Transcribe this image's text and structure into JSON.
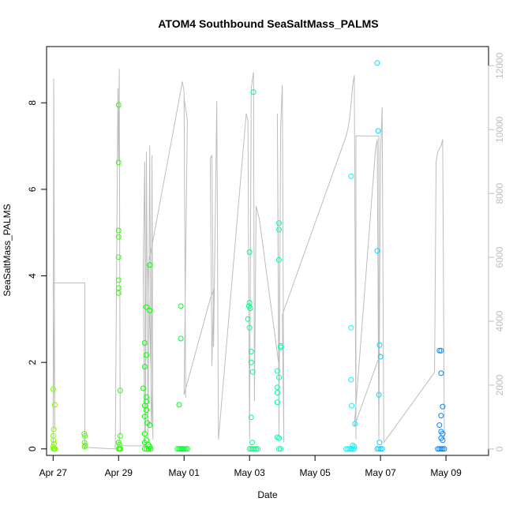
{
  "chart_data": {
    "type": "scatter",
    "title": "ATOM4 Southbound SeaSaltMass_PALMS",
    "xlabel": "Date",
    "ylabel": "SeaSaltMass_PALMS",
    "xlim": [
      -0.2,
      13.3
    ],
    "ylim": [
      -0.15,
      9.3
    ],
    "y2lim": [
      -200,
      12600
    ],
    "x_ticks": [
      {
        "value": 0,
        "label": "Apr 27"
      },
      {
        "value": 2,
        "label": "Apr 29"
      },
      {
        "value": 4,
        "label": "May 01"
      },
      {
        "value": 6,
        "label": "May 03"
      },
      {
        "value": 8,
        "label": "May 05"
      },
      {
        "value": 10,
        "label": "May 07"
      },
      {
        "value": 12,
        "label": "May 09"
      }
    ],
    "y_ticks": [
      0,
      2,
      4,
      6,
      8
    ],
    "y2_ticks": [
      0,
      2000,
      4000,
      6000,
      8000,
      10000,
      12000
    ],
    "grid": false,
    "series": [
      {
        "marker": "open-circle",
        "color_gradient": [
          "#80ff00",
          "#00ff00",
          "#00ff80",
          "#00ffff",
          "#0080ff"
        ],
        "points": [
          [
            0.0,
            1.38
          ],
          [
            0.05,
            1.02
          ],
          [
            0.02,
            0.45
          ],
          [
            0.0,
            0.3
          ],
          [
            0.01,
            0.2
          ],
          [
            0.03,
            0.12
          ],
          [
            0.0,
            0.05
          ],
          [
            0.04,
            0.0
          ],
          [
            0.02,
            0.0
          ],
          [
            0.06,
            0.0
          ],
          [
            0.01,
            0.0
          ],
          [
            0.95,
            0.35
          ],
          [
            0.97,
            0.3
          ],
          [
            0.96,
            0.15
          ],
          [
            0.98,
            0.08
          ],
          [
            0.96,
            0.05
          ],
          [
            2.0,
            7.95
          ],
          [
            2.0,
            6.62
          ],
          [
            2.0,
            5.05
          ],
          [
            2.0,
            4.9
          ],
          [
            2.0,
            4.43
          ],
          [
            2.0,
            3.9
          ],
          [
            2.0,
            3.72
          ],
          [
            2.0,
            3.6
          ],
          [
            2.05,
            1.35
          ],
          [
            2.05,
            0.3
          ],
          [
            2.0,
            0.15
          ],
          [
            2.02,
            0.1
          ],
          [
            2.0,
            0.0
          ],
          [
            2.03,
            0.0
          ],
          [
            2.06,
            0.0
          ],
          [
            2.75,
            1.4
          ],
          [
            2.8,
            1.9
          ],
          [
            2.8,
            2.45
          ],
          [
            2.85,
            2.17
          ],
          [
            2.85,
            3.28
          ],
          [
            2.95,
            3.2
          ],
          [
            2.95,
            4.25
          ],
          [
            2.8,
            1.0
          ],
          [
            2.85,
            1.1
          ],
          [
            2.85,
            1.2
          ],
          [
            2.85,
            0.9
          ],
          [
            2.8,
            0.75
          ],
          [
            2.88,
            0.6
          ],
          [
            2.95,
            0.55
          ],
          [
            2.8,
            0.35
          ],
          [
            2.85,
            0.2
          ],
          [
            2.8,
            0.15
          ],
          [
            2.9,
            0.1
          ],
          [
            2.95,
            0.05
          ],
          [
            2.8,
            0.0
          ],
          [
            2.86,
            0.0
          ],
          [
            2.92,
            0.0
          ],
          [
            2.98,
            0.0
          ],
          [
            3.95,
            0.0
          ],
          [
            4.0,
            0.0
          ],
          [
            4.05,
            0.0
          ],
          [
            4.1,
            0.0
          ],
          [
            3.85,
            1.02
          ],
          [
            3.9,
            2.55
          ],
          [
            3.9,
            3.3
          ],
          [
            3.8,
            0.0
          ],
          [
            3.85,
            0.0
          ],
          [
            3.9,
            0.0
          ],
          [
            3.95,
            0.0
          ],
          [
            4.0,
            0.0
          ],
          [
            5.95,
            3.0
          ],
          [
            5.98,
            3.3
          ],
          [
            6.0,
            3.38
          ],
          [
            6.02,
            3.25
          ],
          [
            6.0,
            2.8
          ],
          [
            6.05,
            2.25
          ],
          [
            6.05,
            2.0
          ],
          [
            6.1,
            1.78
          ],
          [
            6.0,
            4.55
          ],
          [
            6.12,
            8.25
          ],
          [
            6.05,
            0.73
          ],
          [
            6.08,
            0.15
          ],
          [
            6.0,
            0.0
          ],
          [
            6.05,
            0.0
          ],
          [
            6.1,
            0.0
          ],
          [
            6.15,
            0.0
          ],
          [
            6.2,
            0.0
          ],
          [
            6.25,
            0.0
          ],
          [
            6.9,
            5.22
          ],
          [
            6.9,
            5.07
          ],
          [
            6.9,
            4.37
          ],
          [
            6.95,
            2.38
          ],
          [
            6.95,
            2.35
          ],
          [
            6.85,
            1.8
          ],
          [
            6.9,
            1.65
          ],
          [
            6.85,
            1.42
          ],
          [
            6.85,
            1.3
          ],
          [
            6.85,
            1.08
          ],
          [
            6.85,
            0.27
          ],
          [
            6.9,
            0.25
          ],
          [
            6.9,
            0.0
          ],
          [
            6.95,
            0.0
          ],
          [
            8.95,
            0.0
          ],
          [
            9.0,
            0.0
          ],
          [
            9.05,
            0.0
          ],
          [
            9.1,
            0.0
          ],
          [
            9.15,
            0.0
          ],
          [
            9.2,
            0.0
          ],
          [
            9.1,
            6.3
          ],
          [
            9.1,
            2.8
          ],
          [
            9.1,
            1.6
          ],
          [
            9.12,
            1.0
          ],
          [
            9.22,
            0.58
          ],
          [
            9.15,
            0.08
          ],
          [
            9.2,
            0.05
          ],
          [
            9.9,
            8.92
          ],
          [
            9.93,
            7.35
          ],
          [
            9.9,
            4.58
          ],
          [
            9.97,
            2.4
          ],
          [
            10.0,
            2.13
          ],
          [
            9.95,
            1.25
          ],
          [
            9.97,
            0.15
          ],
          [
            9.9,
            0.0
          ],
          [
            9.95,
            0.0
          ],
          [
            10.0,
            0.0
          ],
          [
            10.05,
            0.0
          ],
          [
            11.8,
            2.27
          ],
          [
            11.85,
            2.27
          ],
          [
            11.85,
            1.75
          ],
          [
            11.9,
            0.98
          ],
          [
            11.85,
            0.77
          ],
          [
            11.8,
            0.55
          ],
          [
            11.85,
            0.4
          ],
          [
            11.9,
            0.35
          ],
          [
            11.85,
            0.25
          ],
          [
            11.9,
            0.2
          ],
          [
            11.75,
            0.0
          ],
          [
            11.8,
            0.0
          ],
          [
            11.85,
            0.0
          ],
          [
            11.9,
            0.0
          ],
          [
            11.95,
            0.0
          ]
        ]
      },
      {
        "axis": "right",
        "style": "line",
        "color": "#bdbdbd",
        "points": [
          [
            0.0,
            0
          ],
          [
            0.02,
            11600
          ],
          [
            0.05,
            600
          ],
          [
            0.0,
            5200
          ],
          [
            0.97,
            5200
          ],
          [
            0.97,
            0
          ],
          [
            0.97,
            200
          ],
          [
            1.0,
            50
          ],
          [
            1.9,
            0
          ],
          [
            1.98,
            11300
          ],
          [
            2.0,
            9000
          ],
          [
            2.02,
            11900
          ],
          [
            2.05,
            500
          ],
          [
            2.0,
            100
          ],
          [
            2.8,
            100
          ],
          [
            2.75,
            5600
          ],
          [
            2.8,
            9000
          ],
          [
            2.82,
            500
          ],
          [
            2.85,
            9300
          ],
          [
            2.9,
            300
          ],
          [
            2.95,
            9500
          ],
          [
            3.0,
            800
          ],
          [
            3.02,
            9200
          ],
          [
            3.05,
            300
          ],
          [
            2.9,
            5700
          ],
          [
            3.95,
            11500
          ],
          [
            4.0,
            11200
          ],
          [
            4.05,
            1600
          ],
          [
            4.0,
            11000
          ],
          [
            4.1,
            10300
          ],
          [
            4.0,
            1700
          ],
          [
            4.8,
            4700
          ],
          [
            4.9,
            5000
          ],
          [
            4.85,
            2600
          ],
          [
            4.8,
            9100
          ],
          [
            4.85,
            9200
          ],
          [
            4.9,
            3200
          ],
          [
            5.0,
            10900
          ],
          [
            5.05,
            300
          ],
          [
            5.9,
            10500
          ],
          [
            5.95,
            10300
          ],
          [
            6.0,
            300
          ],
          [
            6.05,
            11300
          ],
          [
            6.12,
            11800
          ],
          [
            6.15,
            1500
          ],
          [
            6.2,
            7600
          ],
          [
            6.3,
            7200
          ],
          [
            6.9,
            2600
          ],
          [
            6.85,
            10500
          ],
          [
            6.9,
            400
          ],
          [
            6.95,
            10100
          ],
          [
            7.0,
            11400
          ],
          [
            7.05,
            200
          ],
          [
            7.0,
            4200
          ],
          [
            8.95,
            9800
          ],
          [
            9.0,
            10000
          ],
          [
            9.05,
            10300
          ],
          [
            9.1,
            10800
          ],
          [
            9.15,
            11400
          ],
          [
            9.2,
            11700
          ],
          [
            9.25,
            300
          ],
          [
            9.25,
            9800
          ],
          [
            9.95,
            9800
          ],
          [
            9.95,
            2900
          ],
          [
            10.0,
            3000
          ],
          [
            9.2,
            700
          ],
          [
            9.85,
            9400
          ],
          [
            9.9,
            9700
          ],
          [
            9.95,
            300
          ],
          [
            10.0,
            9200
          ],
          [
            10.05,
            10700
          ],
          [
            10.1,
            200
          ],
          [
            11.65,
            2400
          ],
          [
            11.7,
            9000
          ],
          [
            11.75,
            9300
          ],
          [
            11.8,
            9400
          ],
          [
            11.85,
            9500
          ],
          [
            11.9,
            9700
          ],
          [
            11.95,
            300
          ]
        ]
      }
    ]
  }
}
